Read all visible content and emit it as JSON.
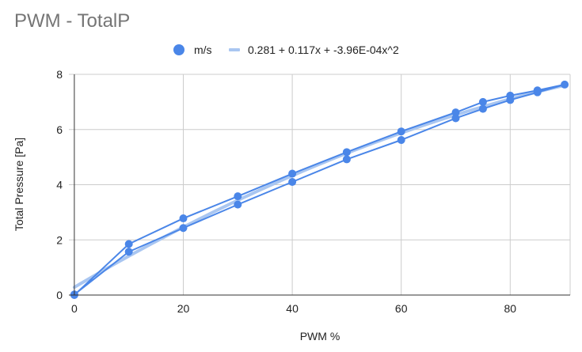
{
  "chart_data": {
    "type": "scatter",
    "title": "PWM - TotalP",
    "xlabel": "PWM %",
    "ylabel": "Total Pressure [Pa]",
    "xlim": [
      -1,
      91
    ],
    "ylim": [
      0,
      8
    ],
    "xticks": [
      0,
      20,
      40,
      60,
      80
    ],
    "yticks": [
      0,
      2,
      4,
      6,
      8
    ],
    "grid": true,
    "legend_position": "top",
    "series": [
      {
        "name": "m/s",
        "color": "#4a86e8",
        "mode": "lines+markers",
        "points": [
          [
            0,
            0.02
          ],
          [
            10,
            1.57
          ],
          [
            20,
            2.43
          ],
          [
            30,
            3.28
          ],
          [
            40,
            4.1
          ],
          [
            50,
            4.92
          ],
          [
            60,
            5.62
          ],
          [
            70,
            6.41
          ],
          [
            75,
            6.75
          ],
          [
            80,
            7.07
          ],
          [
            85,
            7.35
          ],
          [
            90,
            7.63
          ],
          [
            85,
            7.42
          ],
          [
            80,
            7.23
          ],
          [
            75,
            7.0
          ],
          [
            70,
            6.62
          ],
          [
            60,
            5.93
          ],
          [
            50,
            5.18
          ],
          [
            40,
            4.4
          ],
          [
            30,
            3.58
          ],
          [
            20,
            2.78
          ],
          [
            10,
            1.85
          ],
          [
            0,
            0.0
          ]
        ]
      },
      {
        "name": "0.281 + 0.117x + -3.96E-04x^2",
        "color": "#a9c6f1",
        "mode": "trendline",
        "coefficients": [
          0.281,
          0.117,
          -0.000396
        ],
        "x_range": [
          0,
          90
        ]
      }
    ]
  }
}
